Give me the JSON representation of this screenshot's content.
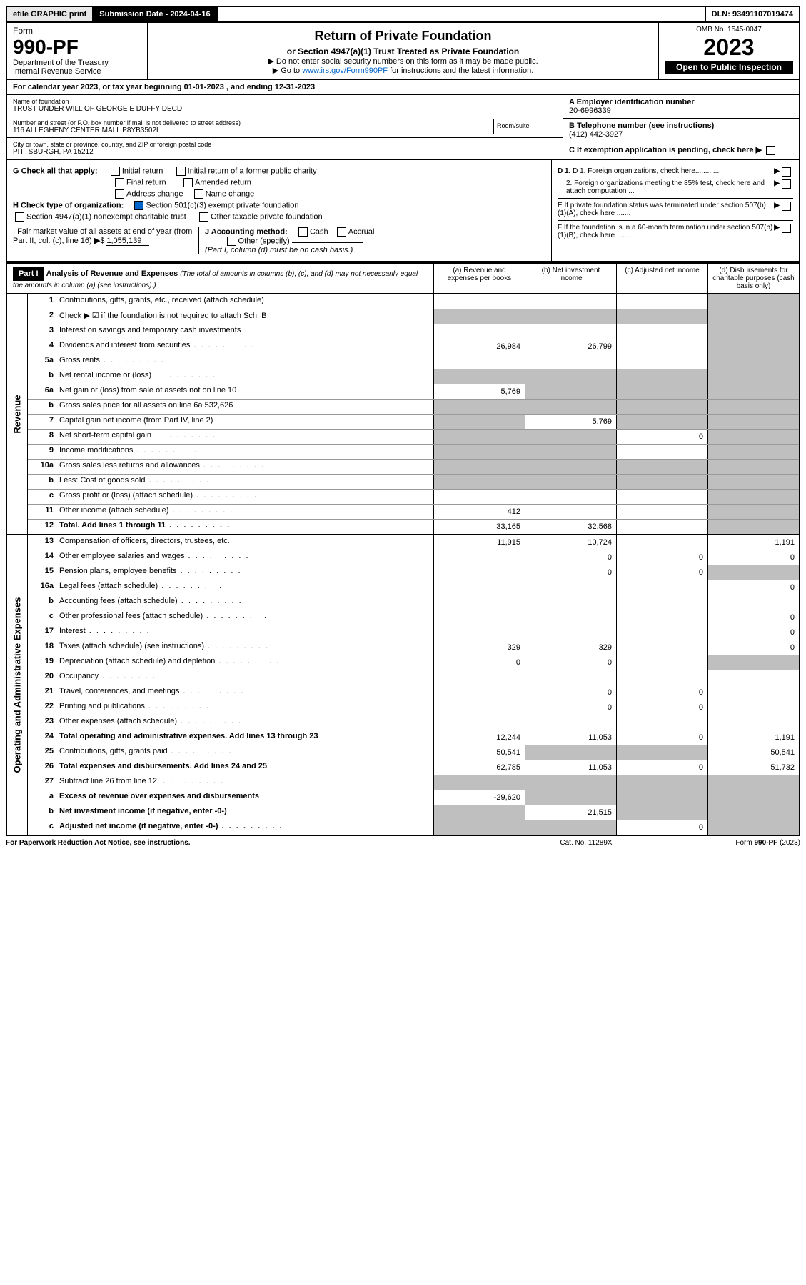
{
  "header": {
    "efile": "efile GRAPHIC print",
    "subdate_label": "Submission Date - 2024-04-16",
    "dln": "DLN: 93491107019474"
  },
  "title": {
    "form_label": "Form",
    "form_num": "990-PF",
    "dept1": "Department of the Treasury",
    "dept2": "Internal Revenue Service",
    "main": "Return of Private Foundation",
    "sub": "or Section 4947(a)(1) Trust Treated as Private Foundation",
    "note1": "▶ Do not enter social security numbers on this form as it may be made public.",
    "note2_pre": "▶ Go to ",
    "note2_link": "www.irs.gov/Form990PF",
    "note2_post": " for instructions and the latest information.",
    "omb": "OMB No. 1545-0047",
    "year": "2023",
    "open": "Open to Public Inspection"
  },
  "calendar": "For calendar year 2023, or tax year beginning 01-01-2023                          , and ending 12-31-2023",
  "id": {
    "name_label": "Name of foundation",
    "name": "TRUST UNDER WILL OF GEORGE E DUFFY DECD",
    "addr_label": "Number and street (or P.O. box number if mail is not delivered to street address)",
    "addr": "116 ALLEGHENY CENTER MALL P8YB3502L",
    "room_label": "Room/suite",
    "city_label": "City or town, state or province, country, and ZIP or foreign postal code",
    "city": "PITTSBURGH, PA  15212",
    "a_label": "A Employer identification number",
    "a_val": "20-6996339",
    "b_label": "B Telephone number (see instructions)",
    "b_val": "(412) 442-3927",
    "c_label": "C If exemption application is pending, check here"
  },
  "checks": {
    "g_label": "G Check all that apply:",
    "g_opts": [
      "Initial return",
      "Initial return of a former public charity",
      "Final return",
      "Amended return",
      "Address change",
      "Name change"
    ],
    "h_label": "H Check type of organization:",
    "h1": "Section 501(c)(3) exempt private foundation",
    "h2": "Section 4947(a)(1) nonexempt charitable trust",
    "h3": "Other taxable private foundation",
    "i_label": "I Fair market value of all assets at end of year (from Part II, col. (c), line 16)",
    "i_val": "1,055,139",
    "j_label": "J Accounting method:",
    "j_cash": "Cash",
    "j_accrual": "Accrual",
    "j_other": "Other (specify)",
    "j_note": "(Part I, column (d) must be on cash basis.)",
    "d1": "D 1. Foreign organizations, check here............",
    "d2": "2. Foreign organizations meeting the 85% test, check here and attach computation ...",
    "e": "E  If private foundation status was terminated under section 507(b)(1)(A), check here .......",
    "f": "F  If the foundation is in a 60-month termination under section 507(b)(1)(B), check here .......",
    "arrow": "▶"
  },
  "part1": {
    "label": "Part I",
    "title": "Analysis of Revenue and Expenses",
    "title_note": "(The total of amounts in columns (b), (c), and (d) may not necessarily equal the amounts in column (a) (see instructions).)",
    "col_a": "(a)   Revenue and expenses per books",
    "col_b": "(b)   Net investment income",
    "col_c": "(c)   Adjusted net income",
    "col_d": "(d)  Disbursements for charitable purposes (cash basis only)"
  },
  "sections": {
    "revenue": "Revenue",
    "expenses": "Operating and Administrative Expenses"
  },
  "lines": {
    "l1": {
      "n": "1",
      "d": "Contributions, gifts, grants, etc., received (attach schedule)"
    },
    "l2": {
      "n": "2",
      "d": "Check ▶ ☑ if the foundation is not required to attach Sch. B"
    },
    "l3": {
      "n": "3",
      "d": "Interest on savings and temporary cash investments"
    },
    "l4": {
      "n": "4",
      "d": "Dividends and interest from securities",
      "a": "26,984",
      "b": "26,799"
    },
    "l5a": {
      "n": "5a",
      "d": "Gross rents"
    },
    "l5b": {
      "n": "b",
      "d": "Net rental income or (loss)"
    },
    "l6a": {
      "n": "6a",
      "d": "Net gain or (loss) from sale of assets not on line 10",
      "a": "5,769"
    },
    "l6b": {
      "n": "b",
      "d": "Gross sales price for all assets on line 6a",
      "inline": "532,626"
    },
    "l7": {
      "n": "7",
      "d": "Capital gain net income (from Part IV, line 2)",
      "b": "5,769"
    },
    "l8": {
      "n": "8",
      "d": "Net short-term capital gain",
      "c": "0"
    },
    "l9": {
      "n": "9",
      "d": "Income modifications"
    },
    "l10a": {
      "n": "10a",
      "d": "Gross sales less returns and allowances"
    },
    "l10b": {
      "n": "b",
      "d": "Less: Cost of goods sold"
    },
    "l10c": {
      "n": "c",
      "d": "Gross profit or (loss) (attach schedule)"
    },
    "l11": {
      "n": "11",
      "d": "Other income (attach schedule)",
      "a": "412"
    },
    "l12": {
      "n": "12",
      "d": "Total. Add lines 1 through 11",
      "a": "33,165",
      "b": "32,568",
      "bold": true
    },
    "l13": {
      "n": "13",
      "d": "Compensation of officers, directors, trustees, etc.",
      "a": "11,915",
      "b": "10,724",
      "d4": "1,191"
    },
    "l14": {
      "n": "14",
      "d": "Other employee salaries and wages",
      "b": "0",
      "c": "0",
      "d4": "0"
    },
    "l15": {
      "n": "15",
      "d": "Pension plans, employee benefits",
      "b": "0",
      "c": "0"
    },
    "l16a": {
      "n": "16a",
      "d": "Legal fees (attach schedule)",
      "d4": "0"
    },
    "l16b": {
      "n": "b",
      "d": "Accounting fees (attach schedule)"
    },
    "l16c": {
      "n": "c",
      "d": "Other professional fees (attach schedule)",
      "d4": "0"
    },
    "l17": {
      "n": "17",
      "d": "Interest",
      "d4": "0"
    },
    "l18": {
      "n": "18",
      "d": "Taxes (attach schedule) (see instructions)",
      "a": "329",
      "b": "329",
      "d4": "0"
    },
    "l19": {
      "n": "19",
      "d": "Depreciation (attach schedule) and depletion",
      "a": "0",
      "b": "0"
    },
    "l20": {
      "n": "20",
      "d": "Occupancy"
    },
    "l21": {
      "n": "21",
      "d": "Travel, conferences, and meetings",
      "b": "0",
      "c": "0"
    },
    "l22": {
      "n": "22",
      "d": "Printing and publications",
      "b": "0",
      "c": "0"
    },
    "l23": {
      "n": "23",
      "d": "Other expenses (attach schedule)"
    },
    "l24": {
      "n": "24",
      "d": "Total operating and administrative expenses. Add lines 13 through 23",
      "a": "12,244",
      "b": "11,053",
      "c": "0",
      "d4": "1,191",
      "bold": true
    },
    "l25": {
      "n": "25",
      "d": "Contributions, gifts, grants paid",
      "a": "50,541",
      "d4": "50,541"
    },
    "l26": {
      "n": "26",
      "d": "Total expenses and disbursements. Add lines 24 and 25",
      "a": "62,785",
      "b": "11,053",
      "c": "0",
      "d4": "51,732",
      "bold": true
    },
    "l27": {
      "n": "27",
      "d": "Subtract line 26 from line 12:"
    },
    "l27a": {
      "n": "a",
      "d": "Excess of revenue over expenses and disbursements",
      "a": "-29,620",
      "bold": true
    },
    "l27b": {
      "n": "b",
      "d": "Net investment income (if negative, enter -0-)",
      "b": "21,515",
      "bold": true
    },
    "l27c": {
      "n": "c",
      "d": "Adjusted net income (if negative, enter -0-)",
      "c": "0",
      "bold": true
    }
  },
  "footer": {
    "left": "For Paperwork Reduction Act Notice, see instructions.",
    "mid": "Cat. No. 11289X",
    "right": "Form 990-PF (2023)"
  }
}
